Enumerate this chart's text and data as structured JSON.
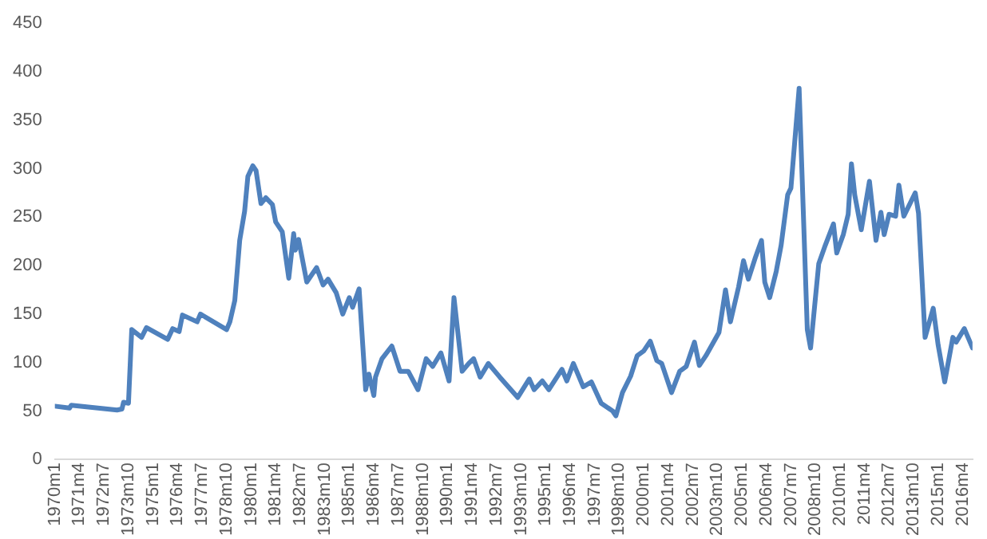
{
  "chart_data": {
    "type": "line",
    "color": "#4f81bd",
    "x": [
      "1970-01",
      "1970-10",
      "1970-11",
      "1973-03",
      "1973-06",
      "1973-07",
      "1973-10",
      "1973-12",
      "1974-06",
      "1974-09",
      "1975-10",
      "1976-01",
      "1976-05",
      "1976-07",
      "1977-04",
      "1977-06",
      "1978-10",
      "1978-12",
      "1979-03",
      "1979-06",
      "1979-09",
      "1979-11",
      "1980-02",
      "1980-04",
      "1980-07",
      "1980-10",
      "1981-02",
      "1981-04",
      "1981-08",
      "1981-12",
      "1982-03",
      "1982-04",
      "1982-06",
      "1982-11",
      "1983-05",
      "1983-09",
      "1983-12",
      "1984-05",
      "1984-09",
      "1985-01",
      "1985-03",
      "1985-07",
      "1985-11",
      "1986-01",
      "1986-04",
      "1986-05",
      "1986-09",
      "1987-03",
      "1987-08",
      "1988-01",
      "1988-07",
      "1988-12",
      "1989-04",
      "1989-09",
      "1990-02",
      "1990-05",
      "1990-10",
      "1991-02",
      "1991-05",
      "1991-09",
      "1992-02",
      "1992-09",
      "1993-08",
      "1994-03",
      "1994-06",
      "1994-11",
      "1995-03",
      "1995-11",
      "1996-02",
      "1996-06",
      "1996-12",
      "1997-05",
      "1997-11",
      "1998-06",
      "1998-08",
      "1998-12",
      "1999-05",
      "1999-09",
      "2000-01",
      "2000-05",
      "2000-09",
      "2000-12",
      "2001-06",
      "2001-11",
      "2002-03",
      "2002-08",
      "2002-11",
      "2003-03",
      "2003-11",
      "2004-03",
      "2004-06",
      "2004-11",
      "2005-02",
      "2005-05",
      "2005-09",
      "2006-01",
      "2006-03",
      "2006-06",
      "2006-10",
      "2007-01",
      "2007-05",
      "2007-07",
      "2007-12",
      "2008-05",
      "2008-07",
      "2008-12",
      "2009-04",
      "2009-09",
      "2009-11",
      "2010-03",
      "2010-06",
      "2010-08",
      "2010-10",
      "2011-02",
      "2011-07",
      "2011-11",
      "2012-02",
      "2012-04",
      "2012-07",
      "2012-11",
      "2013-01",
      "2013-04",
      "2013-11",
      "2014-01",
      "2014-05",
      "2014-10",
      "2015-01",
      "2015-05",
      "2015-10",
      "2015-12",
      "2016-05",
      "2016-10"
    ],
    "values": [
      55,
      53,
      56,
      51,
      52,
      59,
      58,
      134,
      126,
      136,
      124,
      135,
      132,
      149,
      142,
      150,
      134,
      142,
      164,
      226,
      256,
      292,
      303,
      298,
      264,
      270,
      263,
      245,
      235,
      187,
      233,
      216,
      227,
      183,
      198,
      180,
      186,
      172,
      150,
      167,
      157,
      176,
      72,
      88,
      66,
      85,
      104,
      117,
      91,
      91,
      72,
      104,
      96,
      110,
      81,
      167,
      91,
      99,
      104,
      85,
      99,
      85,
      64,
      83,
      72,
      81,
      72,
      93,
      81,
      99,
      75,
      80,
      58,
      50,
      45,
      69,
      86,
      107,
      112,
      122,
      102,
      99,
      69,
      91,
      96,
      121,
      97,
      107,
      131,
      175,
      142,
      178,
      205,
      186,
      207,
      226,
      183,
      167,
      194,
      221,
      273,
      280,
      383,
      134,
      115,
      202,
      221,
      243,
      213,
      232,
      253,
      305,
      273,
      237,
      287,
      226,
      255,
      232,
      253,
      251,
      283,
      251,
      275,
      254,
      126,
      156,
      118,
      80,
      126,
      121,
      135,
      115
    ],
    "xlim": [
      "1970-01",
      "2016-10"
    ],
    "xticks": [
      {
        "value": "1970-01",
        "label": "1970m1"
      },
      {
        "value": "1971-04",
        "label": "1971m4"
      },
      {
        "value": "1972-07",
        "label": "1972m7"
      },
      {
        "value": "1973-10",
        "label": "1973m10"
      },
      {
        "value": "1975-01",
        "label": "1975m1"
      },
      {
        "value": "1976-04",
        "label": "1976m4"
      },
      {
        "value": "1977-07",
        "label": "1977m7"
      },
      {
        "value": "1978-10",
        "label": "1978m10"
      },
      {
        "value": "1980-01",
        "label": "1980m1"
      },
      {
        "value": "1981-04",
        "label": "1981m4"
      },
      {
        "value": "1982-07",
        "label": "1982m7"
      },
      {
        "value": "1983-10",
        "label": "1983m10"
      },
      {
        "value": "1985-01",
        "label": "1985m1"
      },
      {
        "value": "1986-04",
        "label": "1986m4"
      },
      {
        "value": "1987-07",
        "label": "1987m7"
      },
      {
        "value": "1988-10",
        "label": "1988m10"
      },
      {
        "value": "1990-01",
        "label": "1990m1"
      },
      {
        "value": "1991-04",
        "label": "1991m4"
      },
      {
        "value": "1992-07",
        "label": "1992m7"
      },
      {
        "value": "1993-10",
        "label": "1993m10"
      },
      {
        "value": "1995-01",
        "label": "1995m1"
      },
      {
        "value": "1996-04",
        "label": "1996m4"
      },
      {
        "value": "1997-07",
        "label": "1997m7"
      },
      {
        "value": "1998-10",
        "label": "1998m10"
      },
      {
        "value": "2000-01",
        "label": "2000m1"
      },
      {
        "value": "2001-04",
        "label": "2001m4"
      },
      {
        "value": "2002-07",
        "label": "2002m7"
      },
      {
        "value": "2003-10",
        "label": "2003m10"
      },
      {
        "value": "2005-01",
        "label": "2005m1"
      },
      {
        "value": "2006-04",
        "label": "2006m4"
      },
      {
        "value": "2007-07",
        "label": "2007m7"
      },
      {
        "value": "2008-10",
        "label": "2008m10"
      },
      {
        "value": "2010-01",
        "label": "2010m1"
      },
      {
        "value": "2011-04",
        "label": "2011m4"
      },
      {
        "value": "2012-07",
        "label": "2012m7"
      },
      {
        "value": "2013-10",
        "label": "2013m10"
      },
      {
        "value": "2015-01",
        "label": "2015m1"
      },
      {
        "value": "2016-04",
        "label": "2016m4"
      }
    ],
    "ylim": [
      0,
      450
    ],
    "yticks": [
      0,
      50,
      100,
      150,
      200,
      250,
      300,
      350,
      400,
      450
    ]
  }
}
